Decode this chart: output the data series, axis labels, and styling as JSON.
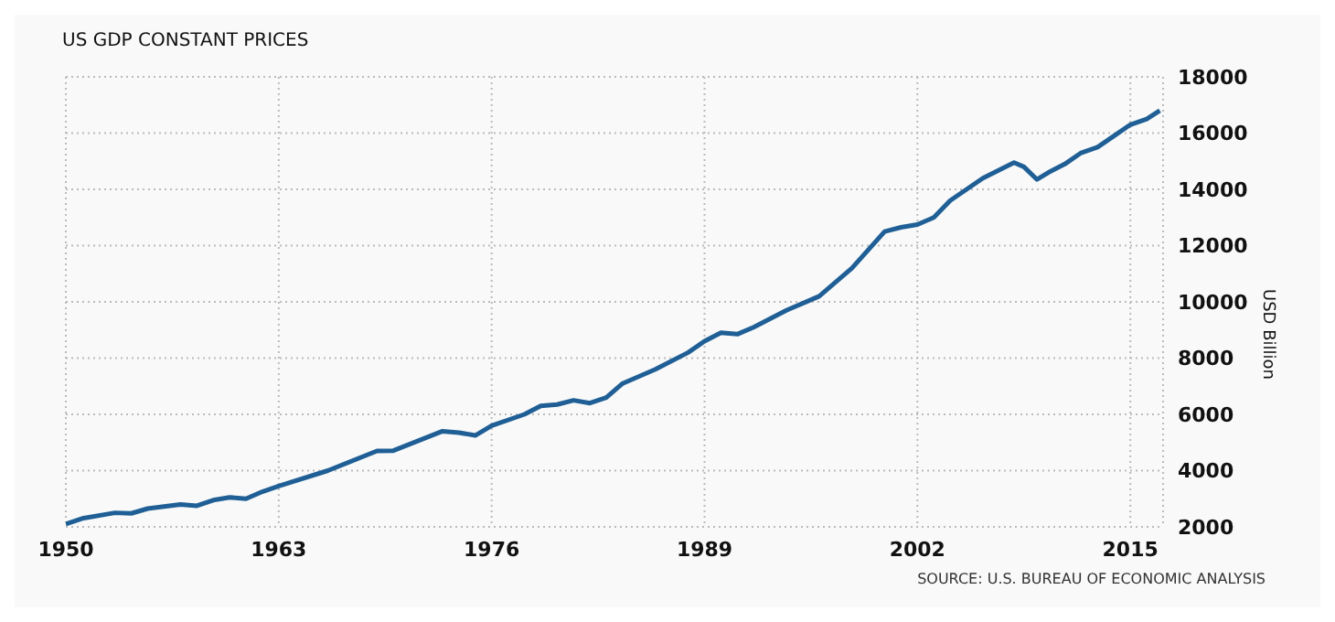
{
  "chart_data": {
    "type": "line",
    "title": "US GDP CONSTANT PRICES",
    "ylabel": "USD Billion",
    "annotations": [
      "SOURCE: U.S. BUREAU OF ECONOMIC ANALYSIS"
    ],
    "x": [
      1950,
      1951,
      1953,
      1954,
      1955,
      1957,
      1958,
      1959,
      1960,
      1961,
      1962,
      1963,
      1966,
      1969,
      1970,
      1973,
      1974,
      1975,
      1976,
      1978,
      1979,
      1980,
      1981,
      1982,
      1983,
      1984,
      1986,
      1988,
      1989,
      1990,
      1991,
      1992,
      1994,
      1996,
      1998,
      2000,
      2001,
      2002,
      2003,
      2004,
      2006,
      2007.9,
      2008.5,
      2009.3,
      2010,
      2011,
      2012,
      2013,
      2014,
      2015,
      2016,
      2016.8
    ],
    "series": [
      {
        "color": "#1f5f96",
        "values": [
          2100,
          2300,
          2500,
          2480,
          2650,
          2800,
          2750,
          2950,
          3050,
          3000,
          3250,
          3450,
          4000,
          4700,
          4710,
          5400,
          5350,
          5250,
          5600,
          6000,
          6300,
          6350,
          6500,
          6400,
          6600,
          7100,
          7600,
          8200,
          8600,
          8900,
          8850,
          9100,
          9700,
          10200,
          11200,
          12500,
          12650,
          12750,
          13000,
          13600,
          14400,
          14950,
          14800,
          14350,
          14600,
          14900,
          15300,
          15500,
          15900,
          16300,
          16500,
          16800
        ]
      }
    ],
    "xlim": [
      1950,
      2017
    ],
    "xticks": [
      1950,
      1963,
      1976,
      1989,
      2002,
      2015
    ],
    "ylim": [
      2000,
      18000
    ],
    "yticks": [
      2000,
      4000,
      6000,
      8000,
      10000,
      12000,
      14000,
      16000,
      18000
    ],
    "grid": true,
    "legend": false,
    "marker": "none",
    "line_style": "solid"
  }
}
